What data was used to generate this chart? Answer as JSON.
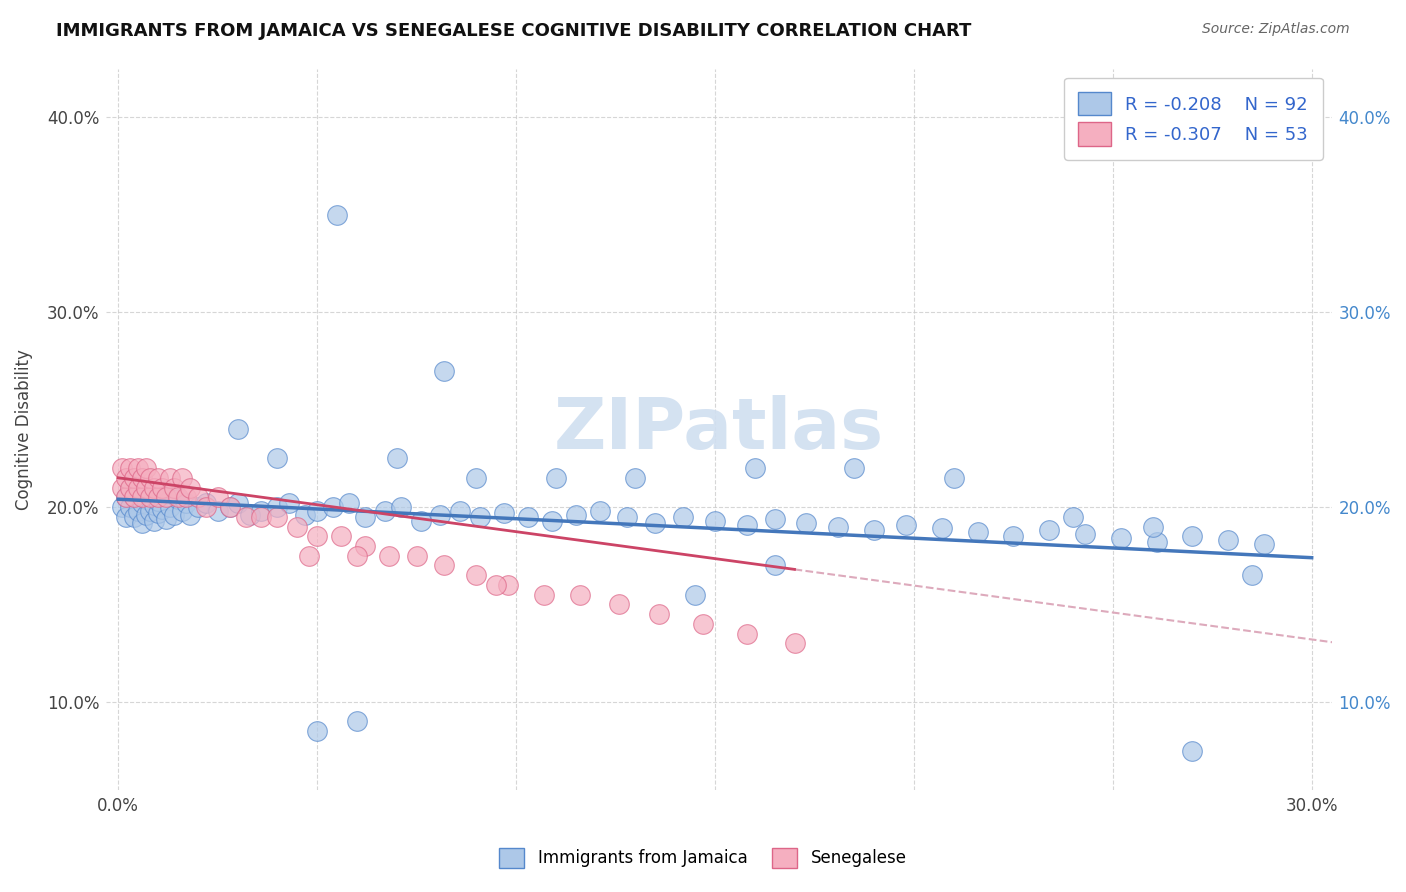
{
  "title": "IMMIGRANTS FROM JAMAICA VS SENEGALESE COGNITIVE DISABILITY CORRELATION CHART",
  "source": "Source: ZipAtlas.com",
  "ylabel": "Cognitive Disability",
  "xlim": [
    -0.003,
    0.305
  ],
  "ylim": [
    0.055,
    0.425
  ],
  "x_ticks": [
    0.0,
    0.05,
    0.1,
    0.15,
    0.2,
    0.25,
    0.3
  ],
  "x_tick_labels": [
    "0.0%",
    "",
    "",
    "",
    "",
    "",
    "30.0%"
  ],
  "y_ticks": [
    0.1,
    0.2,
    0.3,
    0.4
  ],
  "y_tick_labels": [
    "10.0%",
    "20.0%",
    "30.0%",
    "40.0%"
  ],
  "series1_color": "#adc8e8",
  "series2_color": "#f5afc0",
  "series1_edge": "#5588cc",
  "series2_edge": "#dd6688",
  "line1_color": "#4477bb",
  "line2_color": "#cc4466",
  "line2_dash_color": "#ddaabc",
  "background_color": "#ffffff",
  "watermark_color": "#d0dff0",
  "jamaica_x": [
    0.001,
    0.002,
    0.002,
    0.003,
    0.003,
    0.004,
    0.004,
    0.005,
    0.005,
    0.006,
    0.006,
    0.007,
    0.007,
    0.008,
    0.008,
    0.009,
    0.009,
    0.01,
    0.01,
    0.011,
    0.011,
    0.012,
    0.013,
    0.014,
    0.015,
    0.016,
    0.017,
    0.018,
    0.02,
    0.022,
    0.025,
    0.028,
    0.03,
    0.033,
    0.036,
    0.04,
    0.043,
    0.047,
    0.05,
    0.054,
    0.058,
    0.062,
    0.067,
    0.071,
    0.076,
    0.081,
    0.086,
    0.091,
    0.097,
    0.103,
    0.109,
    0.115,
    0.121,
    0.128,
    0.135,
    0.142,
    0.15,
    0.158,
    0.165,
    0.173,
    0.181,
    0.19,
    0.198,
    0.207,
    0.216,
    0.225,
    0.234,
    0.243,
    0.252,
    0.261,
    0.27,
    0.279,
    0.288,
    0.04,
    0.07,
    0.09,
    0.11,
    0.13,
    0.16,
    0.185,
    0.21,
    0.24,
    0.26,
    0.285,
    0.055,
    0.082,
    0.145,
    0.165,
    0.06,
    0.03,
    0.05,
    0.27
  ],
  "jamaica_y": [
    0.2,
    0.195,
    0.205,
    0.2,
    0.21,
    0.195,
    0.205,
    0.198,
    0.208,
    0.192,
    0.202,
    0.196,
    0.204,
    0.198,
    0.207,
    0.193,
    0.201,
    0.197,
    0.203,
    0.199,
    0.208,
    0.194,
    0.2,
    0.196,
    0.204,
    0.198,
    0.202,
    0.196,
    0.2,
    0.202,
    0.198,
    0.2,
    0.202,
    0.196,
    0.198,
    0.2,
    0.202,
    0.196,
    0.198,
    0.2,
    0.202,
    0.195,
    0.198,
    0.2,
    0.193,
    0.196,
    0.198,
    0.195,
    0.197,
    0.195,
    0.193,
    0.196,
    0.198,
    0.195,
    0.192,
    0.195,
    0.193,
    0.191,
    0.194,
    0.192,
    0.19,
    0.188,
    0.191,
    0.189,
    0.187,
    0.185,
    0.188,
    0.186,
    0.184,
    0.182,
    0.185,
    0.183,
    0.181,
    0.225,
    0.225,
    0.215,
    0.215,
    0.215,
    0.22,
    0.22,
    0.215,
    0.195,
    0.19,
    0.165,
    0.35,
    0.27,
    0.155,
    0.17,
    0.09,
    0.24,
    0.085,
    0.075
  ],
  "senegal_x": [
    0.001,
    0.001,
    0.002,
    0.002,
    0.003,
    0.003,
    0.004,
    0.004,
    0.005,
    0.005,
    0.006,
    0.006,
    0.007,
    0.007,
    0.008,
    0.008,
    0.009,
    0.01,
    0.01,
    0.011,
    0.012,
    0.013,
    0.014,
    0.015,
    0.016,
    0.017,
    0.018,
    0.02,
    0.022,
    0.025,
    0.028,
    0.032,
    0.036,
    0.04,
    0.045,
    0.05,
    0.056,
    0.062,
    0.068,
    0.075,
    0.082,
    0.09,
    0.098,
    0.107,
    0.116,
    0.126,
    0.136,
    0.147,
    0.158,
    0.17,
    0.048,
    0.06,
    0.095
  ],
  "senegal_y": [
    0.21,
    0.22,
    0.205,
    0.215,
    0.21,
    0.22,
    0.205,
    0.215,
    0.21,
    0.22,
    0.205,
    0.215,
    0.21,
    0.22,
    0.205,
    0.215,
    0.21,
    0.205,
    0.215,
    0.21,
    0.205,
    0.215,
    0.21,
    0.205,
    0.215,
    0.205,
    0.21,
    0.205,
    0.2,
    0.205,
    0.2,
    0.195,
    0.195,
    0.195,
    0.19,
    0.185,
    0.185,
    0.18,
    0.175,
    0.175,
    0.17,
    0.165,
    0.16,
    0.155,
    0.155,
    0.15,
    0.145,
    0.14,
    0.135,
    0.13,
    0.175,
    0.175,
    0.16
  ]
}
